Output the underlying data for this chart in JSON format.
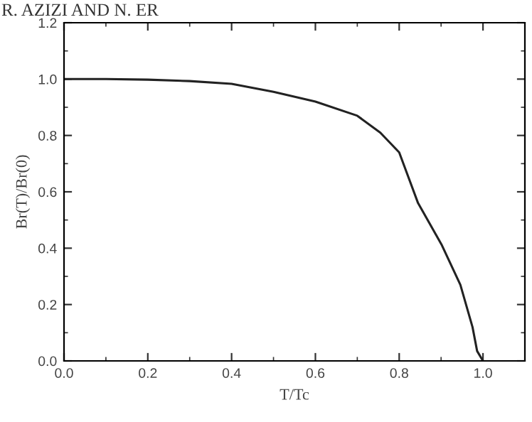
{
  "chart_data": {
    "type": "line",
    "xlabel": "T/Tc",
    "ylabel": "Br(T)/Br(0)",
    "annotations": [
      "R. AZIZI AND N. ER"
    ],
    "x": [
      0,
      0.1,
      0.2,
      0.3,
      0.4,
      0.5,
      0.6,
      0.7,
      0.755,
      0.8,
      0.845,
      0.902,
      0.946,
      0.975,
      0.986,
      1.0
    ],
    "series": [
      {
        "color": "#222222",
        "values": [
          1.0,
          1.0,
          0.998,
          0.993,
          0.983,
          0.955,
          0.92,
          0.87,
          0.81,
          0.74,
          0.56,
          0.41,
          0.27,
          0.12,
          0.035,
          0.0
        ]
      }
    ],
    "xlim": [
      0,
      1.1
    ],
    "ylim": [
      0,
      1.2
    ],
    "xticks": [
      {
        "value": 0,
        "label": "0.0"
      },
      0.2,
      0.4,
      0.6,
      0.8,
      {
        "value": 1,
        "label": "1.0"
      }
    ],
    "yticks": [
      {
        "value": 0,
        "label": "0.0"
      },
      0.2,
      0.4,
      0.6,
      0.8,
      {
        "value": 1,
        "label": "1.0"
      },
      1.2
    ],
    "grid": false,
    "legend": false,
    "marker": "none",
    "line_style": "solid"
  }
}
